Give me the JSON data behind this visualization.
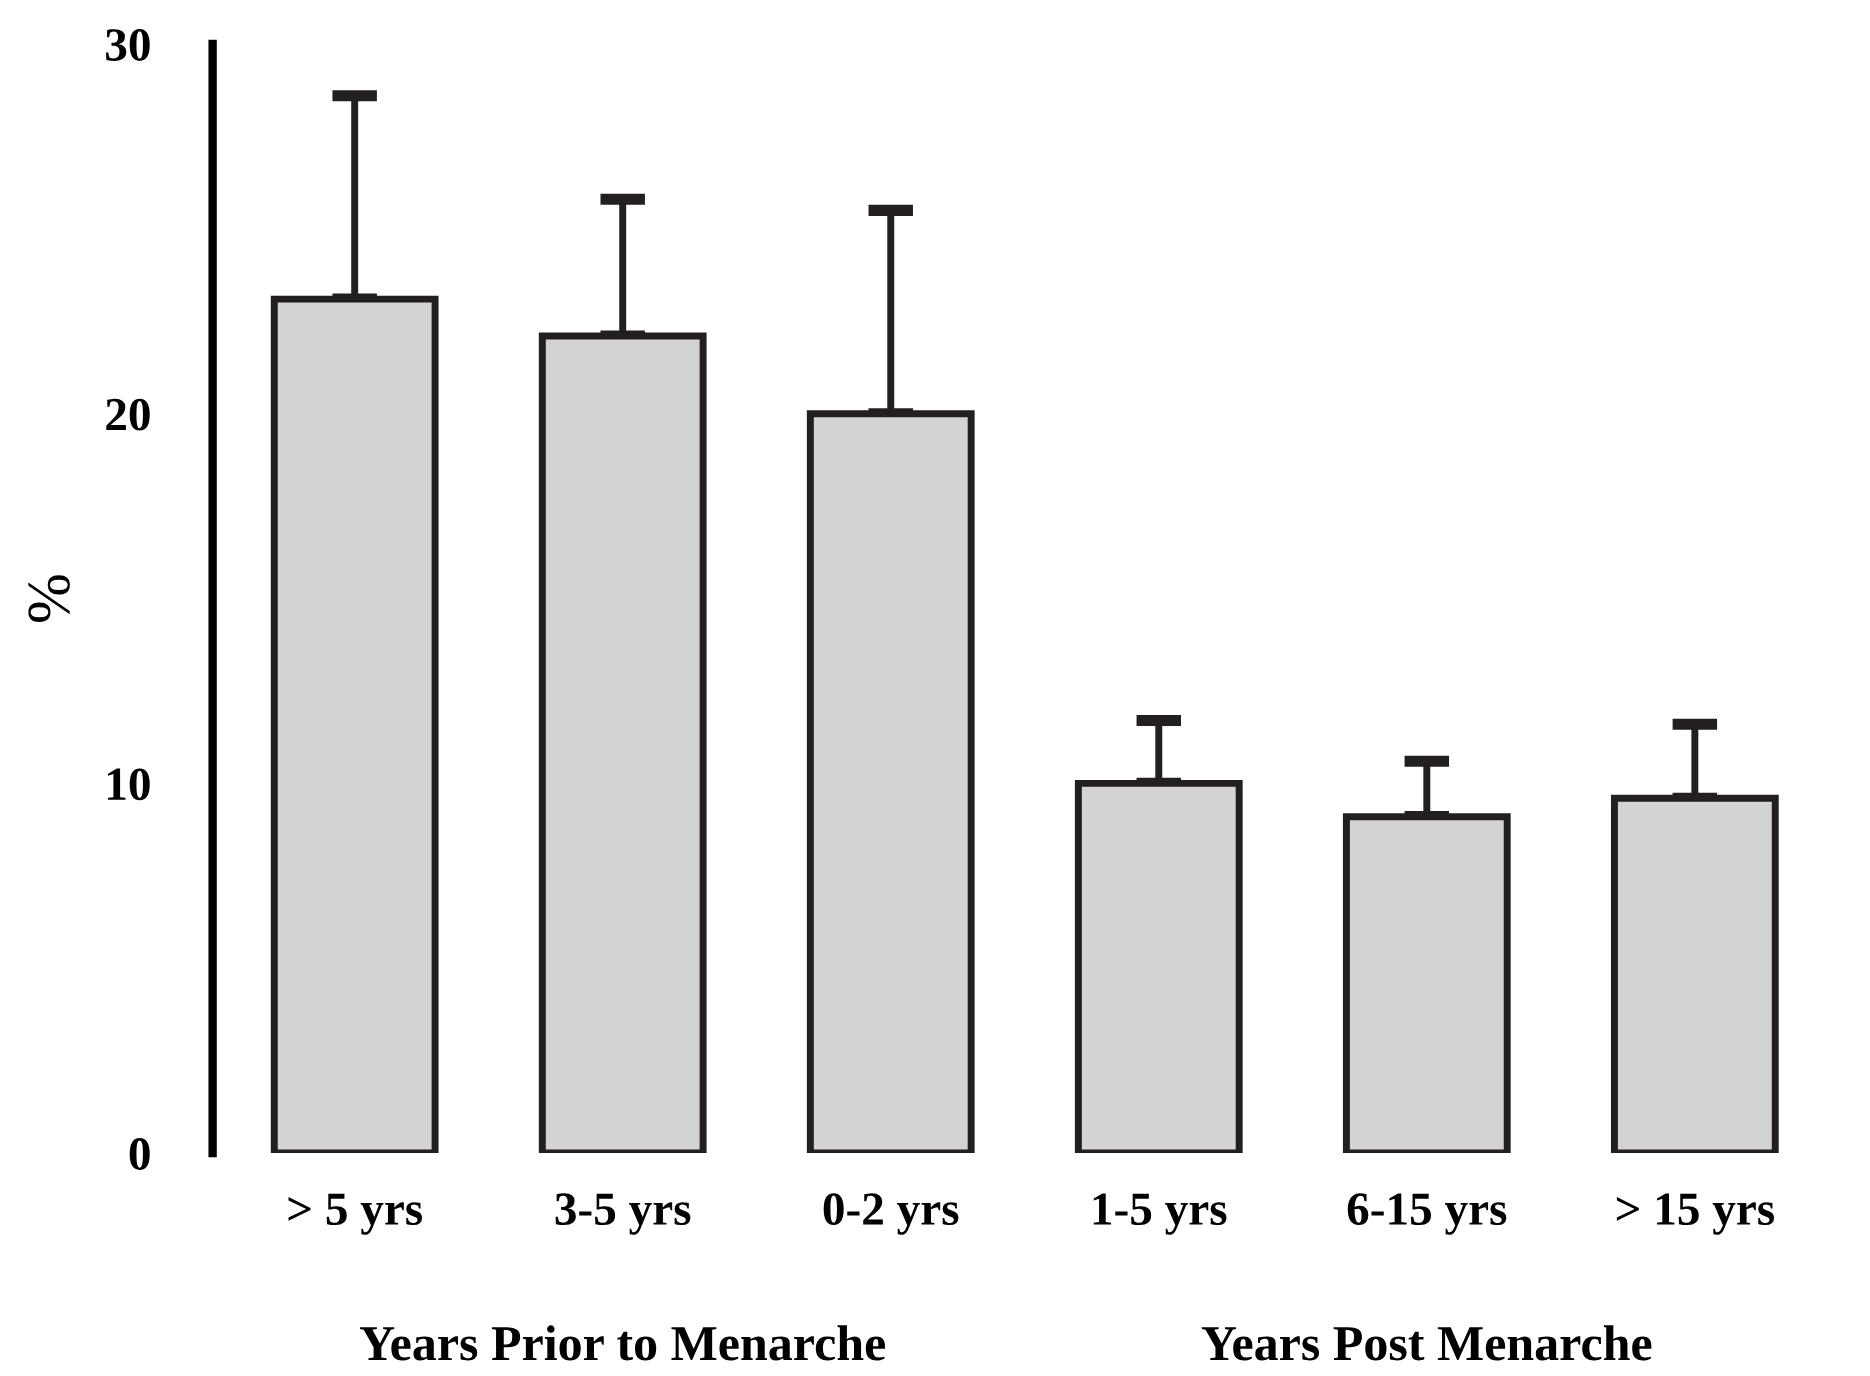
{
  "chart_data": {
    "type": "bar",
    "ylabel": "%",
    "categories": [
      "> 5 yrs",
      "3-5 yrs",
      "0-2 yrs",
      "1-5 yrs",
      "6-15 yrs",
      "> 15 yrs"
    ],
    "values": [
      23.1,
      22.1,
      20.0,
      10.0,
      9.1,
      9.6
    ],
    "errors": [
      [
        23.1,
        28.6
      ],
      [
        22.1,
        25.8
      ],
      [
        20.0,
        25.5
      ],
      [
        10.0,
        11.7
      ],
      [
        9.1,
        10.6
      ],
      [
        9.6,
        11.6
      ]
    ],
    "color": "#d3d3d5",
    "ylim": [
      0,
      30
    ],
    "yticks": [
      0,
      10,
      20,
      30
    ],
    "annotations": [
      "Years Prior to Menarche",
      "Years Post Menarche"
    ],
    "grid": false
  }
}
